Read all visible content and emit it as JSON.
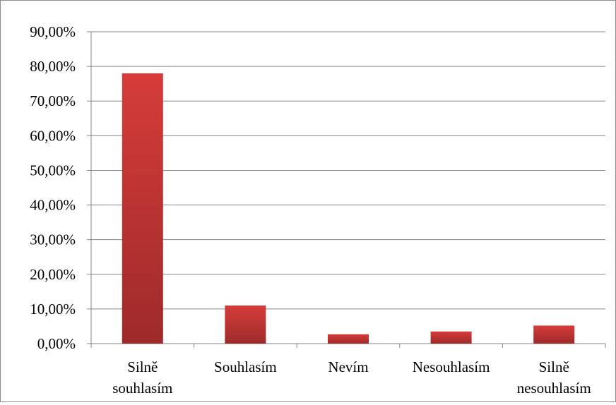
{
  "chart_data": {
    "type": "bar",
    "title": "",
    "xlabel": "",
    "ylabel": "",
    "categories": [
      [
        "Silně",
        "souhlasím"
      ],
      [
        "Souhlasím"
      ],
      [
        "Nevím"
      ],
      [
        "Nesouhlasím"
      ],
      [
        "Silně",
        "nesouhlasím"
      ]
    ],
    "values": [
      78.0,
      11.0,
      2.7,
      3.5,
      5.2
    ],
    "ylim": [
      0,
      90
    ],
    "y_ticks": [
      "0,00%",
      "10,00%",
      "20,00%",
      "30,00%",
      "40,00%",
      "50,00%",
      "60,00%",
      "70,00%",
      "80,00%",
      "90,00%"
    ],
    "grid": true,
    "legend": "none",
    "bar_color_top": "#d63c3a",
    "bar_color_bottom": "#9e2a2a",
    "grid_color": "#868686"
  }
}
